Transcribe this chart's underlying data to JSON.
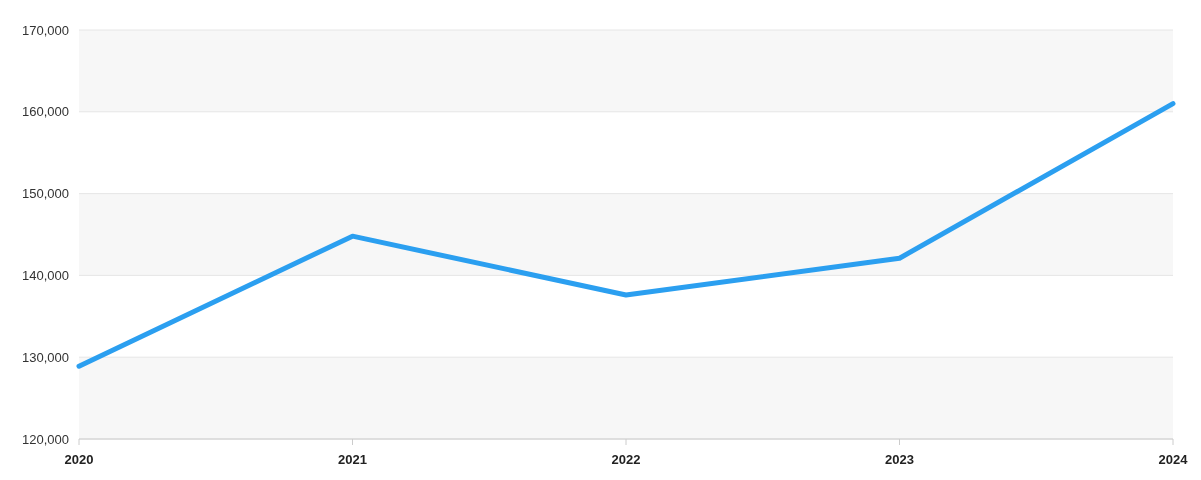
{
  "chart_data": {
    "type": "line",
    "categories": [
      "2020",
      "2021",
      "2022",
      "2023",
      "2024"
    ],
    "series": [
      {
        "color": "#2b9ff0",
        "values": [
          128900,
          144800,
          137600,
          142100,
          161000
        ]
      }
    ],
    "ylim": [
      120000,
      170000
    ],
    "yticks": [
      {
        "value": 120000,
        "label": "120,000"
      },
      {
        "value": 130000,
        "label": "130,000"
      },
      {
        "value": 140000,
        "label": "140,000"
      },
      {
        "value": 150000,
        "label": "150,000"
      },
      {
        "value": 160000,
        "label": "160,000"
      },
      {
        "value": 170000,
        "label": "170,000"
      }
    ],
    "grid": "y",
    "marker": "none",
    "line_style": "solid"
  }
}
